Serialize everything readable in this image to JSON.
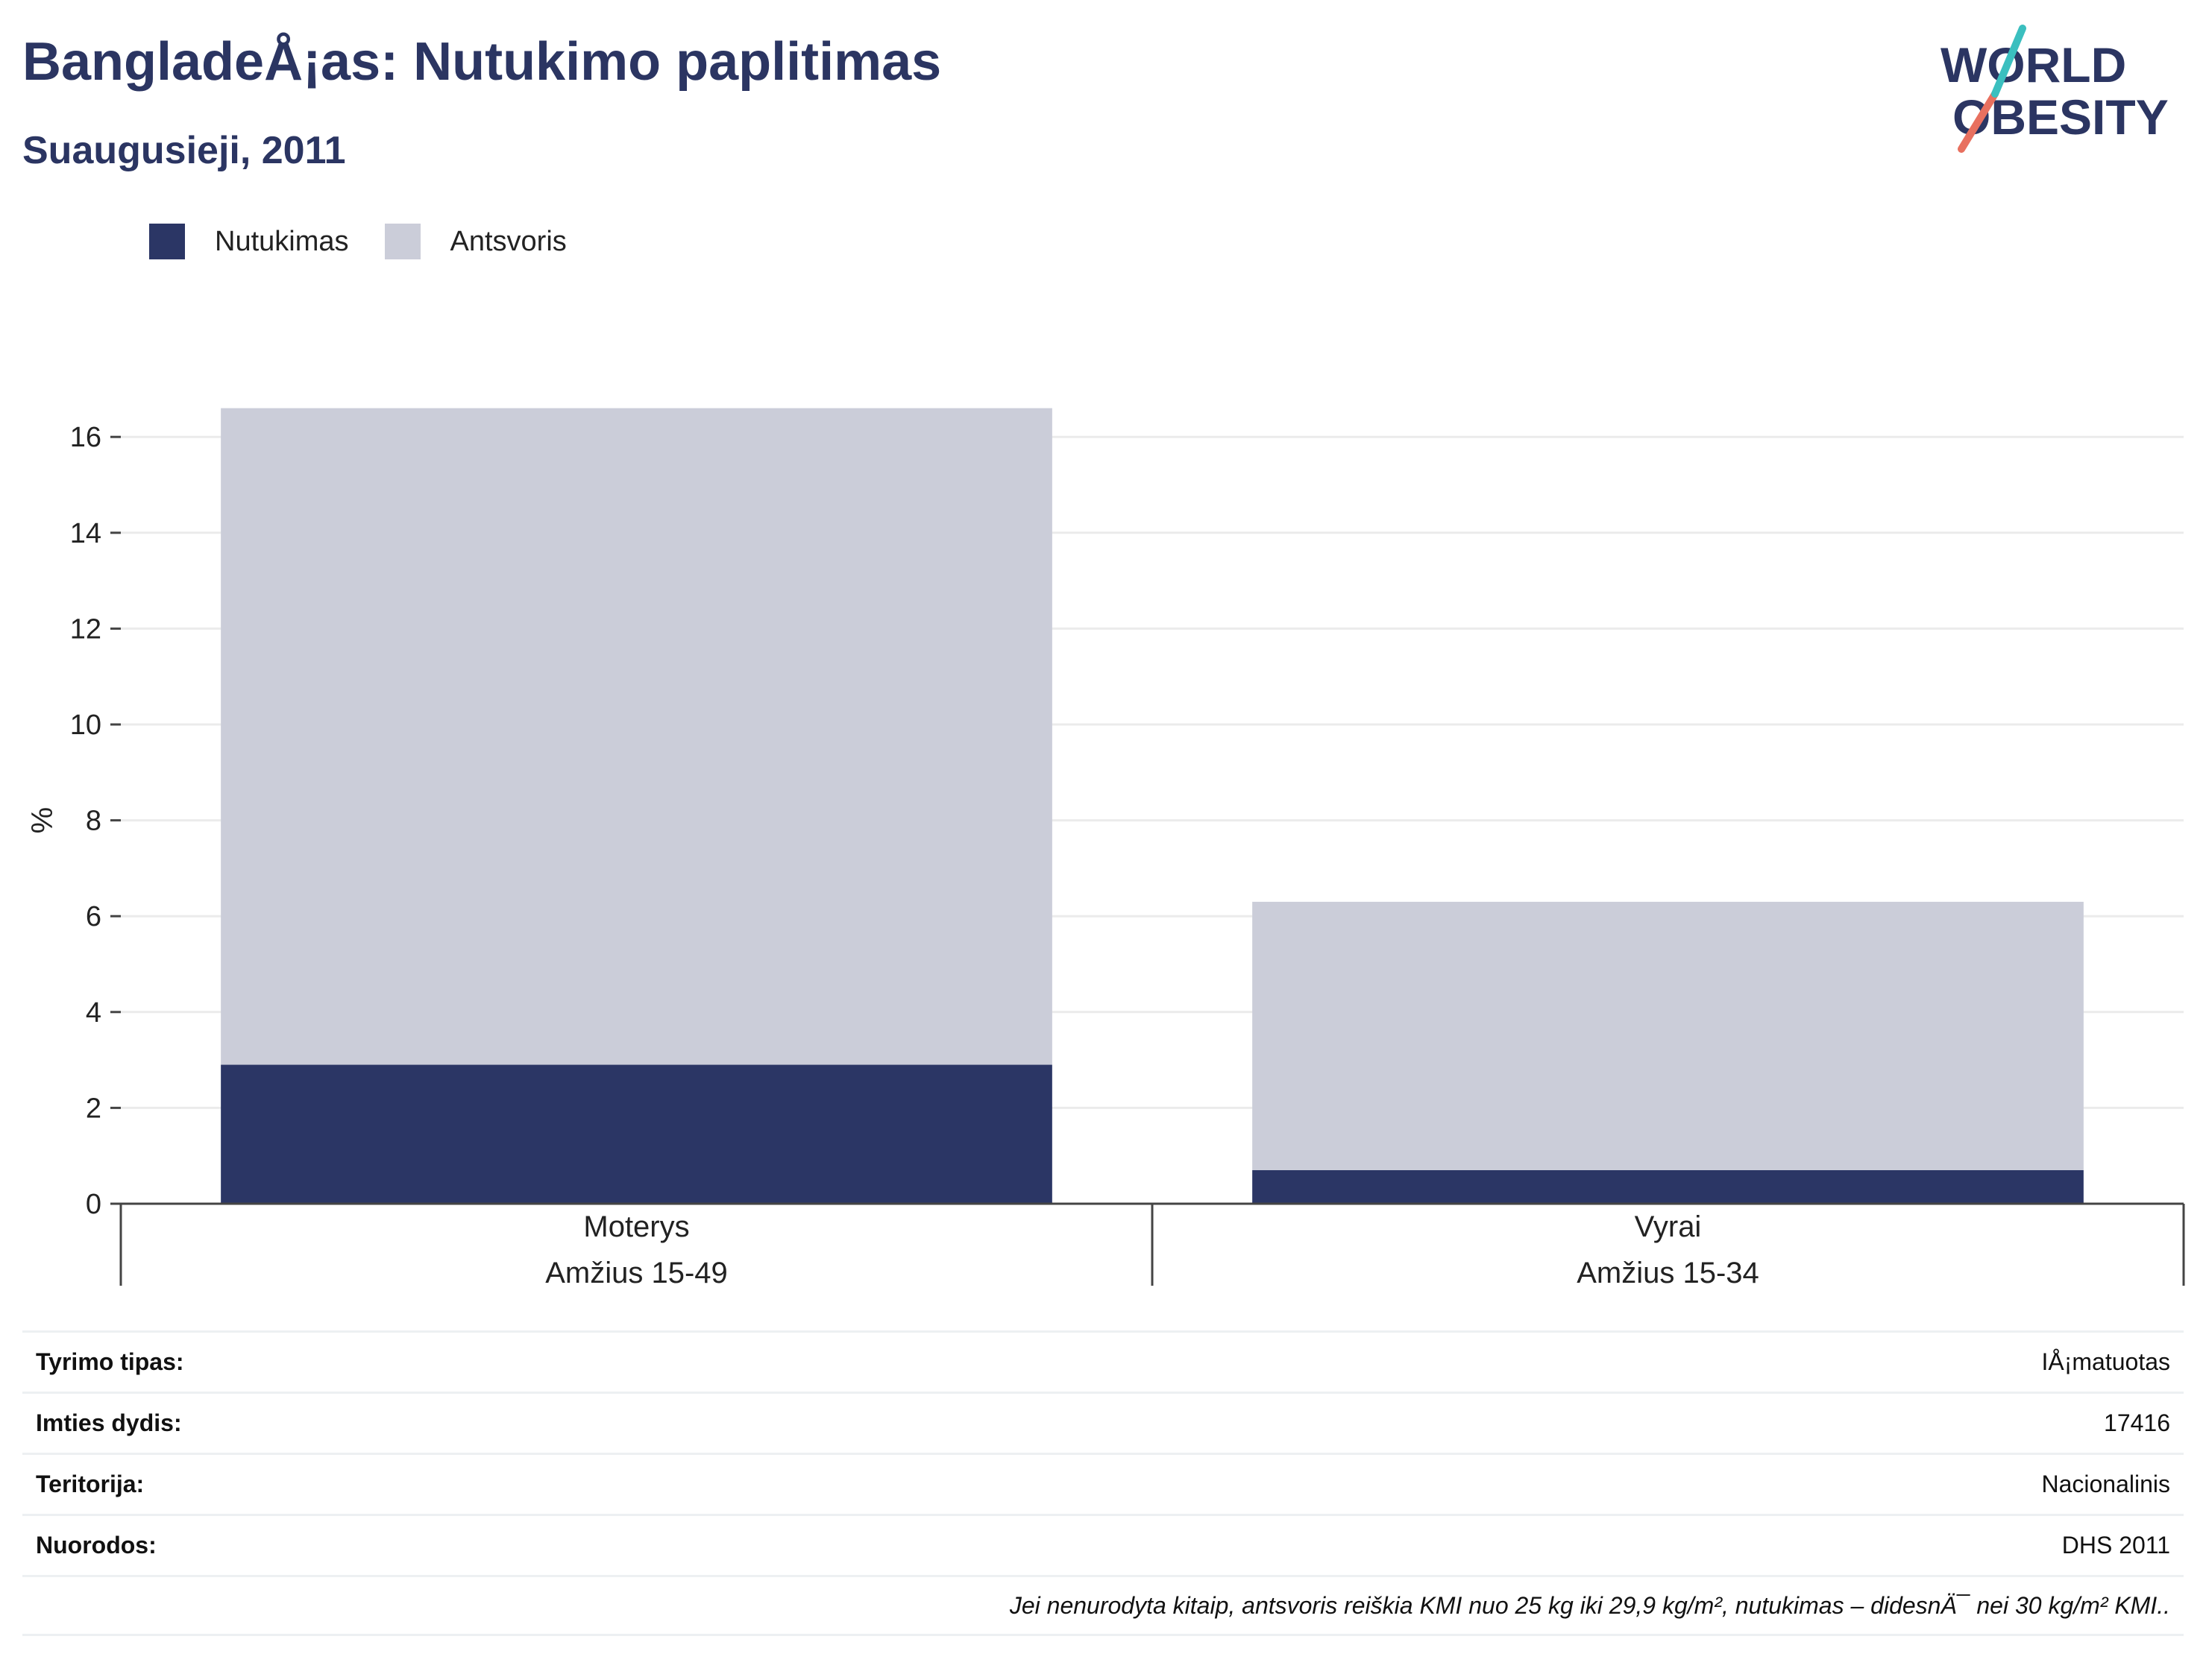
{
  "header": {
    "title": "BangladeÅ¡as: Nutukimo paplitimas",
    "subtitle": "Suaugusieji, 2011"
  },
  "logo": {
    "line1": "WORLD",
    "line2": "OBESITY"
  },
  "legend": [
    {
      "label": "Nutukimas",
      "color": "#2b3665"
    },
    {
      "label": "Antsvoris",
      "color": "#cbcdd9"
    }
  ],
  "chart_data": {
    "type": "bar",
    "stacked": true,
    "categories": [
      {
        "name": "Moterys",
        "age": "Amžius 15-49"
      },
      {
        "name": "Vyrai",
        "age": "Amžius 15-34"
      }
    ],
    "series": [
      {
        "name": "Nutukimas",
        "values": [
          2.9,
          0.7
        ],
        "color": "#2b3665"
      },
      {
        "name": "Antsvoris",
        "values": [
          13.7,
          5.6
        ],
        "color": "#cbcdd9"
      }
    ],
    "ylabel": "%",
    "ylim": [
      0,
      17
    ],
    "yticks": [
      0,
      2,
      4,
      6,
      8,
      10,
      12,
      14,
      16
    ],
    "grid": true
  },
  "info": [
    {
      "key": "Tyrimo tipas:",
      "value": "IÅ¡matuotas"
    },
    {
      "key": "Imties dydis:",
      "value": "17416"
    },
    {
      "key": "Teritorija:",
      "value": "Nacionalinis"
    },
    {
      "key": "Nuorodos:",
      "value": "DHS 2011"
    }
  ],
  "note": "Jei nenurodyta kitaip, antsvoris reiškia KMI nuo 25 kg iki 29,9 kg/m², nutukimas – didesnÄ¯ nei 30 kg/m² KMI.."
}
